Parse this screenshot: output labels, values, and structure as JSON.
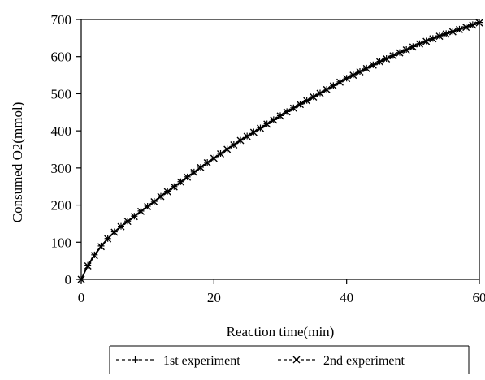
{
  "chart_data": {
    "type": "line",
    "title": "",
    "xlabel": "Reaction time(min)",
    "ylabel": "Consumed O2(mmol)",
    "xlim": [
      0,
      60
    ],
    "ylim": [
      0,
      700
    ],
    "xticks": [
      0,
      20,
      40,
      60
    ],
    "yticks": [
      0,
      100,
      200,
      300,
      400,
      500,
      600,
      700
    ],
    "grid": false,
    "legend_position": "bottom-right",
    "series": [
      {
        "name": "1st experiment",
        "marker": "plus",
        "x": [
          0,
          1,
          2,
          3,
          4,
          5,
          6,
          7,
          8,
          9,
          10,
          11,
          12,
          13,
          14,
          15,
          16,
          17,
          18,
          19,
          20,
          21,
          22,
          23,
          24,
          25,
          26,
          27,
          28,
          29,
          30,
          31,
          32,
          33,
          34,
          35,
          36,
          37,
          38,
          39,
          40,
          41,
          42,
          43,
          44,
          45,
          46,
          47,
          48,
          49,
          50,
          51,
          52,
          53,
          54,
          55,
          56,
          57,
          58,
          59,
          60
        ],
        "y": [
          0,
          38,
          66,
          90,
          110,
          128,
          143,
          157,
          170,
          184,
          197,
          210,
          224,
          237,
          250,
          263,
          276,
          289,
          302,
          315,
          327,
          339,
          351,
          363,
          375,
          386,
          397,
          408,
          419,
          430,
          441,
          452,
          462,
          472,
          482,
          492,
          502,
          512,
          522,
          532,
          542,
          551,
          560,
          569,
          578,
          587,
          595,
          603,
          611,
          619,
          627,
          635,
          642,
          649,
          656,
          662,
          668,
          674,
          680,
          686,
          692
        ]
      },
      {
        "name": "2nd experiment",
        "marker": "x",
        "x": [
          0,
          1,
          2,
          3,
          4,
          5,
          6,
          7,
          8,
          9,
          10,
          11,
          12,
          13,
          14,
          15,
          16,
          17,
          18,
          19,
          20,
          21,
          22,
          23,
          24,
          25,
          26,
          27,
          28,
          29,
          30,
          31,
          32,
          33,
          34,
          35,
          36,
          37,
          38,
          39,
          40,
          41,
          42,
          43,
          44,
          45,
          46,
          47,
          48,
          49,
          50,
          51,
          52,
          53,
          54,
          55,
          56,
          57,
          58,
          59,
          60
        ],
        "y": [
          0,
          36,
          64,
          88,
          109,
          127,
          142,
          156,
          169,
          183,
          196,
          209,
          223,
          236,
          249,
          262,
          275,
          288,
          301,
          314,
          326,
          338,
          350,
          362,
          374,
          385,
          396,
          407,
          418,
          429,
          440,
          451,
          461,
          471,
          481,
          491,
          501,
          511,
          521,
          531,
          541,
          550,
          559,
          568,
          577,
          586,
          594,
          602,
          610,
          618,
          626,
          634,
          641,
          648,
          655,
          661,
          667,
          673,
          679,
          685,
          691
        ]
      }
    ]
  }
}
